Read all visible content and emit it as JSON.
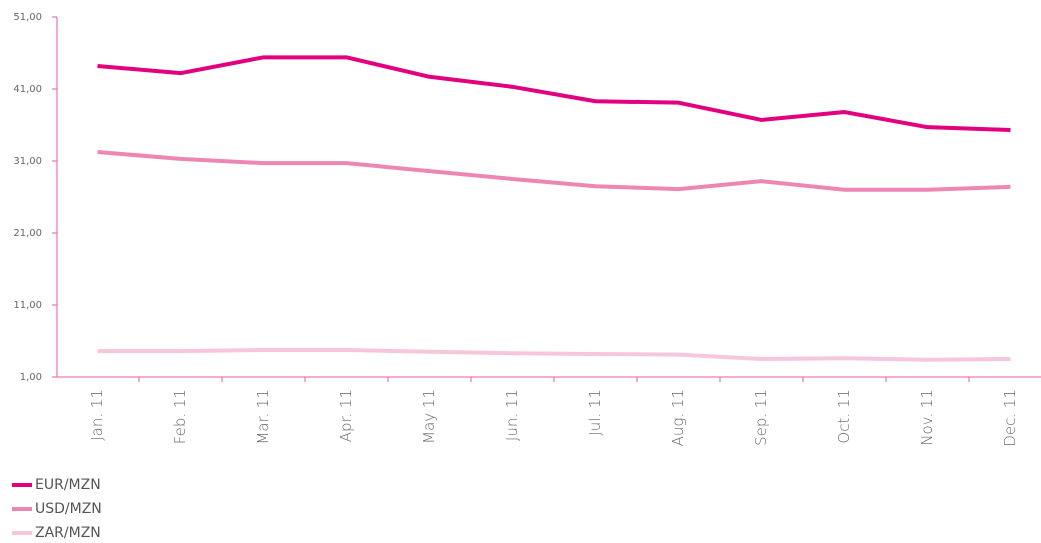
{
  "chart_data": {
    "type": "line",
    "categories": [
      "Jan. 11",
      "Feb. 11",
      "Mar. 11",
      "Apr. 11",
      "May 11",
      "Jun. 11",
      "Jul. 11",
      "Aug. 11",
      "Sep. 11",
      "Oct. 11",
      "Nov. 11",
      "Dec. 11"
    ],
    "series": [
      {
        "name": "EUR/MZN",
        "color": "#e3007e",
        "values": [
          44.2,
          43.2,
          45.4,
          45.4,
          42.7,
          41.3,
          39.3,
          39.1,
          36.7,
          37.8,
          35.7,
          35.3
        ]
      },
      {
        "name": "USD/MZN",
        "color": "#ee86b4",
        "values": [
          32.25,
          31.3,
          30.7,
          30.7,
          29.6,
          28.5,
          27.5,
          27.1,
          28.2,
          27.0,
          27.0,
          27.4
        ]
      },
      {
        "name": "ZAR/MZN",
        "color": "#f6c6dc",
        "values": [
          4.6,
          4.6,
          4.75,
          4.75,
          4.5,
          4.3,
          4.2,
          4.1,
          3.5,
          3.6,
          3.4,
          3.5
        ]
      }
    ],
    "ylim": [
      1,
      51
    ],
    "yticks": [
      {
        "value": 1,
        "label": "1,00"
      },
      {
        "value": 11,
        "label": "11,00"
      },
      {
        "value": 21,
        "label": "21,00"
      },
      {
        "value": 31,
        "label": "31,00"
      },
      {
        "value": 41,
        "label": "41,00"
      },
      {
        "value": 51,
        "label": "51,00"
      }
    ],
    "legend": "bottom-left"
  }
}
